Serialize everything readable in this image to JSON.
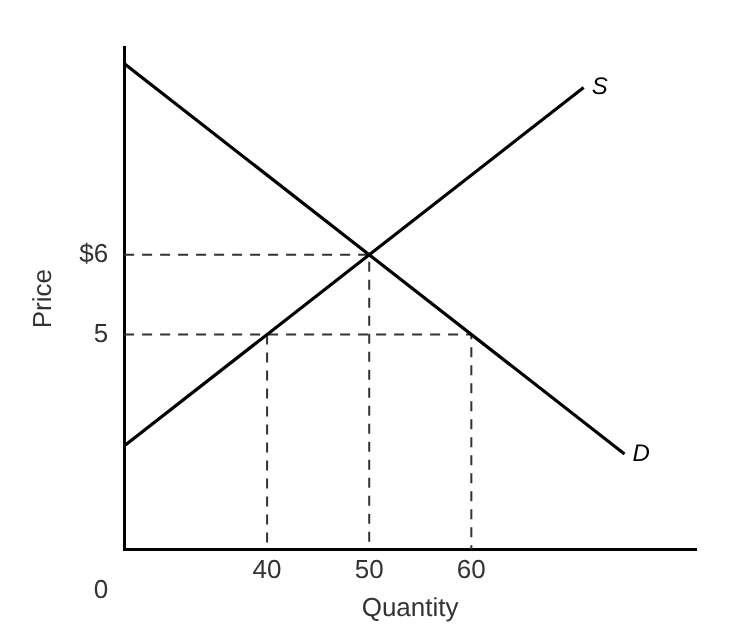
{
  "chart_data": {
    "type": "line",
    "xlabel": "Quantity",
    "ylabel": "Price",
    "xlim": [
      26,
      82
    ],
    "ylim": [
      2.3,
      8.6
    ],
    "xticks": [
      40,
      50,
      60
    ],
    "yticks": [
      5,
      {
        "value": 6,
        "label": "$6"
      }
    ],
    "grid": false,
    "legend": false,
    "marker": "none",
    "annotations": [
      "0"
    ],
    "series": [
      {
        "name": "S",
        "color": "#000000",
        "x": [
          26,
          71
        ],
        "values": [
          3.6,
          8.1
        ],
        "line_style": "solid"
      },
      {
        "name": "D",
        "color": "#000000",
        "x": [
          26,
          75
        ],
        "values": [
          8.4,
          3.5
        ],
        "line_style": "solid"
      },
      {
        "color": "#333333",
        "x": [
          26,
          50,
          50
        ],
        "values": [
          6,
          6,
          2.3
        ],
        "line_style": "dashed"
      },
      {
        "color": "#333333",
        "x": [
          26,
          60,
          60
        ],
        "values": [
          5,
          5,
          2.3
        ],
        "line_style": "dashed"
      },
      {
        "color": "#333333",
        "x": [
          40,
          40
        ],
        "values": [
          5,
          2.3
        ],
        "line_style": "dashed"
      }
    ]
  }
}
